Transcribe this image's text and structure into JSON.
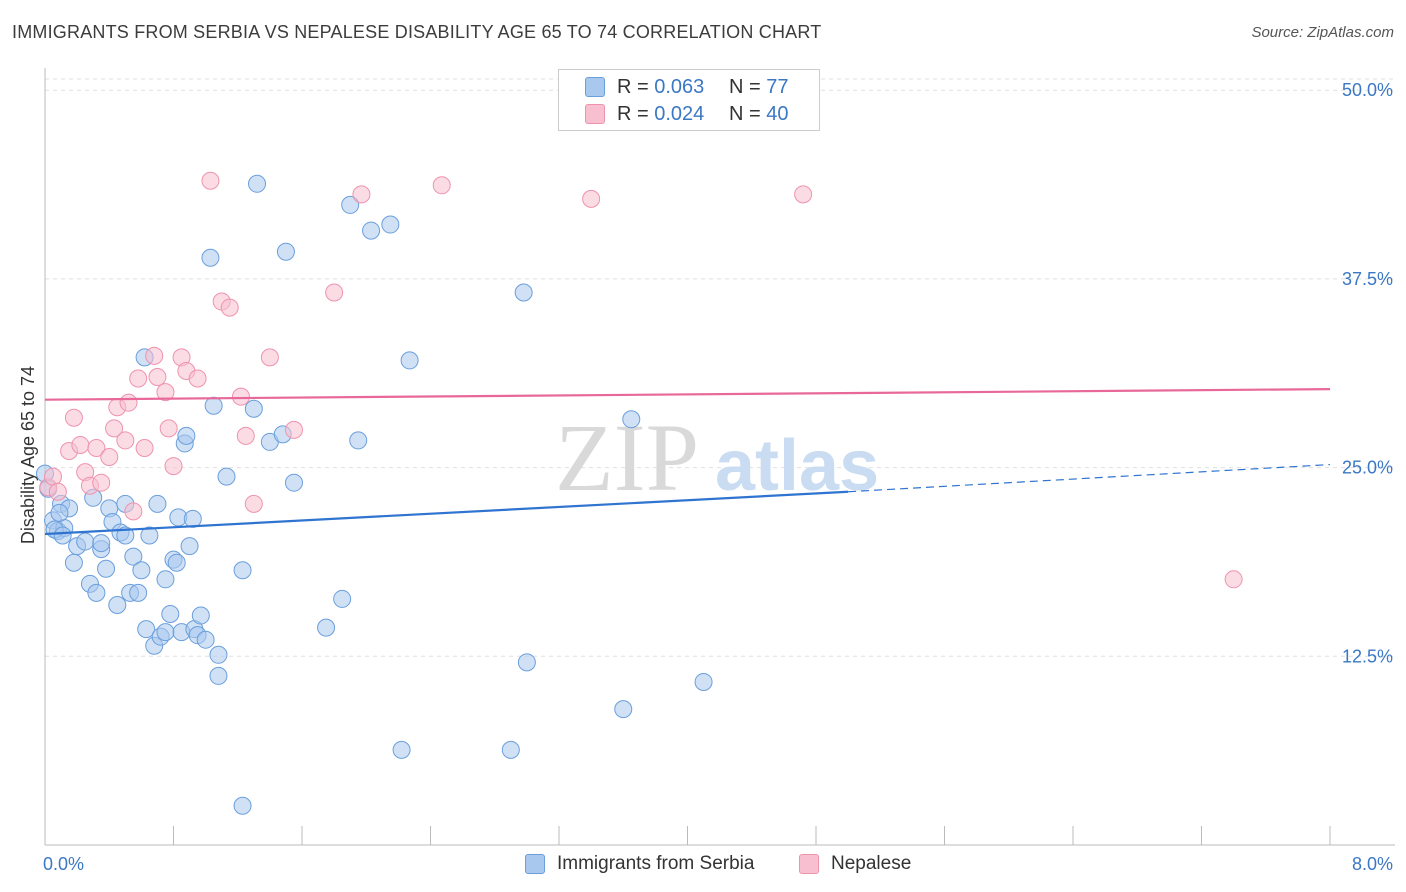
{
  "header": {
    "title": "IMMIGRANTS FROM SERBIA VS NEPALESE DISABILITY AGE 65 TO 74 CORRELATION CHART",
    "source": "Source: ZipAtlas.com"
  },
  "watermark": {
    "zip": "ZIP",
    "atlas": "atlas"
  },
  "legend_top": {
    "rows": [
      {
        "r_label": "R = ",
        "r_value": "0.063",
        "n_label": "N = ",
        "n_value": "77"
      },
      {
        "r_label": "R = ",
        "r_value": "0.024",
        "n_label": "N = ",
        "n_value": "40"
      }
    ]
  },
  "legend_bottom": {
    "items": [
      {
        "label": "Immigrants from Serbia"
      },
      {
        "label": "Nepalese"
      }
    ]
  },
  "colors": {
    "serbia_fill": "#a9c8ee",
    "serbia_stroke": "#6a9fdc",
    "serbia_line": "#2f74d0",
    "nepalese_fill": "#f7bfcf",
    "nepalese_stroke": "#ee93ae",
    "nepalese_line": "#e8689a",
    "tick_text": "#3b78c4",
    "grid": "#e0e0e0"
  },
  "chart_data": {
    "type": "scatter",
    "title": "IMMIGRANTS FROM SERBIA VS NEPALESE DISABILITY AGE 65 TO 74 CORRELATION CHART",
    "xlabel": "",
    "ylabel": "Disability Age 65 to 74",
    "xlim": [
      0,
      8
    ],
    "ylim": [
      0,
      52
    ],
    "x_tick_labels": [
      "0.0%",
      "8.0%"
    ],
    "y_ticks": [
      12.5,
      25.0,
      37.5,
      50.0
    ],
    "y_tick_labels": [
      "12.5%",
      "25.0%",
      "37.5%",
      "50.0%"
    ],
    "grid": "horizontal dashed",
    "legend": "top-center",
    "series": [
      {
        "name": "Immigrants from Serbia",
        "r": 0.063,
        "n": 77,
        "trend": {
          "x0": 0.0,
          "y0": 20.6,
          "x1": 5.0,
          "y1": 23.4,
          "dashed_to_x": 8.0,
          "dashed_to_y": 25.2
        },
        "points": [
          [
            0.05,
            21.5
          ],
          [
            0.08,
            20.8
          ],
          [
            0.1,
            22.6
          ],
          [
            0.12,
            21.0
          ],
          [
            0.15,
            22.3
          ],
          [
            0.18,
            18.7
          ],
          [
            0.2,
            19.8
          ],
          [
            0.25,
            20.1
          ],
          [
            0.28,
            17.3
          ],
          [
            0.3,
            23.0
          ],
          [
            0.32,
            16.7
          ],
          [
            0.35,
            19.6
          ],
          [
            0.35,
            20.0
          ],
          [
            0.38,
            18.3
          ],
          [
            0.4,
            22.3
          ],
          [
            0.42,
            21.4
          ],
          [
            0.45,
            15.9
          ],
          [
            0.47,
            20.7
          ],
          [
            0.5,
            22.6
          ],
          [
            0.5,
            20.5
          ],
          [
            0.53,
            16.7
          ],
          [
            0.55,
            19.1
          ],
          [
            0.58,
            16.7
          ],
          [
            0.6,
            18.2
          ],
          [
            0.62,
            32.3
          ],
          [
            0.63,
            14.3
          ],
          [
            0.65,
            20.5
          ],
          [
            0.68,
            13.2
          ],
          [
            0.7,
            22.6
          ],
          [
            0.72,
            13.8
          ],
          [
            0.75,
            14.1
          ],
          [
            0.75,
            17.6
          ],
          [
            0.78,
            15.3
          ],
          [
            0.8,
            18.9
          ],
          [
            0.82,
            18.7
          ],
          [
            0.83,
            21.7
          ],
          [
            0.85,
            14.1
          ],
          [
            0.87,
            26.6
          ],
          [
            0.88,
            27.1
          ],
          [
            0.9,
            19.8
          ],
          [
            0.92,
            21.6
          ],
          [
            0.93,
            14.3
          ],
          [
            0.95,
            13.9
          ],
          [
            0.97,
            15.2
          ],
          [
            1.0,
            13.6
          ],
          [
            1.03,
            38.9
          ],
          [
            1.05,
            29.1
          ],
          [
            1.08,
            12.6
          ],
          [
            1.08,
            11.2
          ],
          [
            1.13,
            24.4
          ],
          [
            1.23,
            18.2
          ],
          [
            1.23,
            2.6
          ],
          [
            1.3,
            28.9
          ],
          [
            1.32,
            43.8
          ],
          [
            1.4,
            26.7
          ],
          [
            1.48,
            27.2
          ],
          [
            1.5,
            39.3
          ],
          [
            1.55,
            24.0
          ],
          [
            1.75,
            14.4
          ],
          [
            1.85,
            16.3
          ],
          [
            1.9,
            42.4
          ],
          [
            1.95,
            26.8
          ],
          [
            2.03,
            40.7
          ],
          [
            2.15,
            41.1
          ],
          [
            2.22,
            6.3
          ],
          [
            2.27,
            32.1
          ],
          [
            2.9,
            6.3
          ],
          [
            2.98,
            36.6
          ],
          [
            3.0,
            12.1
          ],
          [
            3.6,
            9.0
          ],
          [
            3.65,
            28.2
          ],
          [
            4.1,
            10.8
          ],
          [
            0.0,
            24.6
          ],
          [
            0.02,
            23.6
          ],
          [
            0.06,
            20.9
          ],
          [
            0.09,
            22.0
          ],
          [
            0.11,
            20.5
          ]
        ]
      },
      {
        "name": "Nepalese",
        "r": 0.024,
        "n": 40,
        "trend": {
          "x0": 0.0,
          "y0": 29.5,
          "x1": 8.0,
          "y1": 30.2
        },
        "points": [
          [
            0.02,
            23.7
          ],
          [
            0.05,
            24.4
          ],
          [
            0.08,
            23.4
          ],
          [
            0.15,
            26.1
          ],
          [
            0.18,
            28.3
          ],
          [
            0.22,
            26.5
          ],
          [
            0.25,
            24.7
          ],
          [
            0.28,
            23.8
          ],
          [
            0.32,
            26.3
          ],
          [
            0.35,
            24.0
          ],
          [
            0.4,
            25.7
          ],
          [
            0.43,
            27.6
          ],
          [
            0.45,
            29.0
          ],
          [
            0.5,
            26.8
          ],
          [
            0.52,
            29.3
          ],
          [
            0.55,
            22.1
          ],
          [
            0.58,
            30.9
          ],
          [
            0.62,
            26.3
          ],
          [
            0.68,
            32.4
          ],
          [
            0.7,
            31.0
          ],
          [
            0.75,
            30.0
          ],
          [
            0.77,
            27.6
          ],
          [
            0.8,
            25.1
          ],
          [
            0.85,
            32.3
          ],
          [
            0.88,
            31.4
          ],
          [
            0.95,
            30.9
          ],
          [
            1.03,
            44.0
          ],
          [
            1.1,
            36.0
          ],
          [
            1.15,
            35.6
          ],
          [
            1.22,
            29.7
          ],
          [
            1.25,
            27.1
          ],
          [
            1.3,
            22.6
          ],
          [
            1.4,
            32.3
          ],
          [
            1.55,
            27.5
          ],
          [
            1.8,
            36.6
          ],
          [
            1.97,
            43.1
          ],
          [
            2.47,
            43.7
          ],
          [
            3.4,
            42.8
          ],
          [
            4.72,
            43.1
          ],
          [
            7.4,
            17.6
          ]
        ]
      }
    ]
  }
}
